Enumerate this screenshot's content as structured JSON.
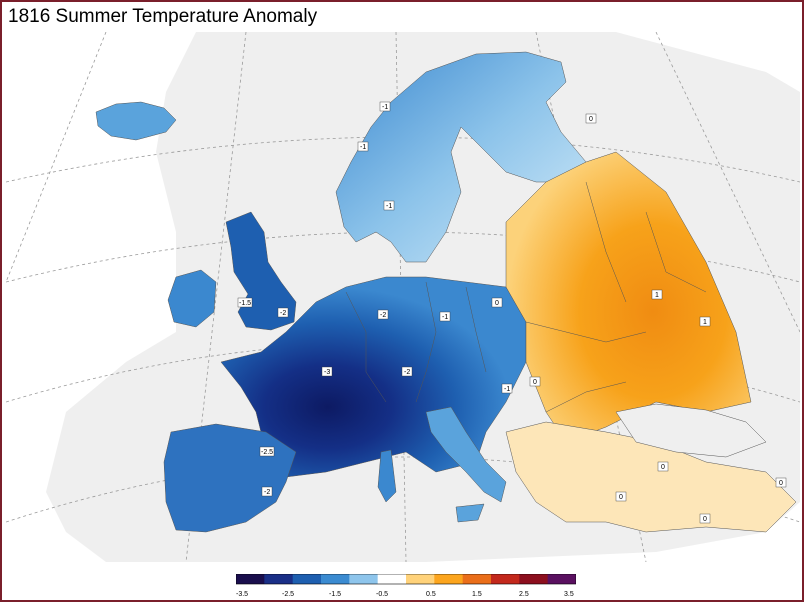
{
  "title": "1816 Summer Temperature Anomaly",
  "colors": {
    "background_land": "#efefef",
    "border": "#7a1f2b",
    "cold_extreme": "#0d1a63",
    "cold_strong": "#1b4fa6",
    "cold_mid": "#3b88cf",
    "cold_light": "#8cc3ea",
    "neutral": "#ffffff",
    "warm_light": "#fcd27a",
    "warm_mid": "#f7a21a"
  },
  "chart_data": {
    "type": "heatmap",
    "colorbar": {
      "ticks": [
        "-3.5",
        "-2.5",
        "-1.5",
        "-0.5",
        "0.5",
        "1.5",
        "2.5",
        "3.5"
      ],
      "range": [
        -3.5,
        3.5
      ],
      "colors": [
        "#1a0e4d",
        "#1a2f87",
        "#1e5fb0",
        "#3b8bd1",
        "#8ec5ec",
        "#ffffff",
        "#ffd27a",
        "#fca51e",
        "#ea6e1a",
        "#c3281c",
        "#8c0f1e",
        "#5a1060"
      ]
    },
    "contour_labels": [
      {
        "text": "-1",
        "lon_lat_hint": "northern Norway"
      },
      {
        "text": "0",
        "lon_lat_hint": "Barents coast"
      },
      {
        "text": "-1",
        "lon_lat_hint": "Scandinavian Mountains"
      },
      {
        "text": "-1",
        "lon_lat_hint": "southern Sweden"
      },
      {
        "text": "-1.5",
        "lon_lat_hint": "southern England"
      },
      {
        "text": "-2",
        "lon_lat_hint": "English Channel"
      },
      {
        "text": "-2",
        "lon_lat_hint": "Germany"
      },
      {
        "text": "-1",
        "lon_lat_hint": "Czech region"
      },
      {
        "text": "0",
        "lon_lat_hint": "Poland"
      },
      {
        "text": "-3",
        "lon_lat_hint": "central France"
      },
      {
        "text": "-2",
        "lon_lat_hint": "Alps"
      },
      {
        "text": "-1",
        "lon_lat_hint": "Hungary"
      },
      {
        "text": "0",
        "lon_lat_hint": "Romania"
      },
      {
        "text": "1",
        "lon_lat_hint": "central Russia"
      },
      {
        "text": "1",
        "lon_lat_hint": "southern Russia"
      },
      {
        "text": "0",
        "lon_lat_hint": "Turkey"
      },
      {
        "text": "0",
        "lon_lat_hint": "Anatolia west"
      },
      {
        "text": "0",
        "lon_lat_hint": "Aegean"
      },
      {
        "text": "0",
        "lon_lat_hint": "eastern Anatolia"
      },
      {
        "text": "-2.5",
        "lon_lat_hint": "northern Iberia"
      },
      {
        "text": "-2",
        "lon_lat_hint": "southern Iberia"
      }
    ]
  }
}
